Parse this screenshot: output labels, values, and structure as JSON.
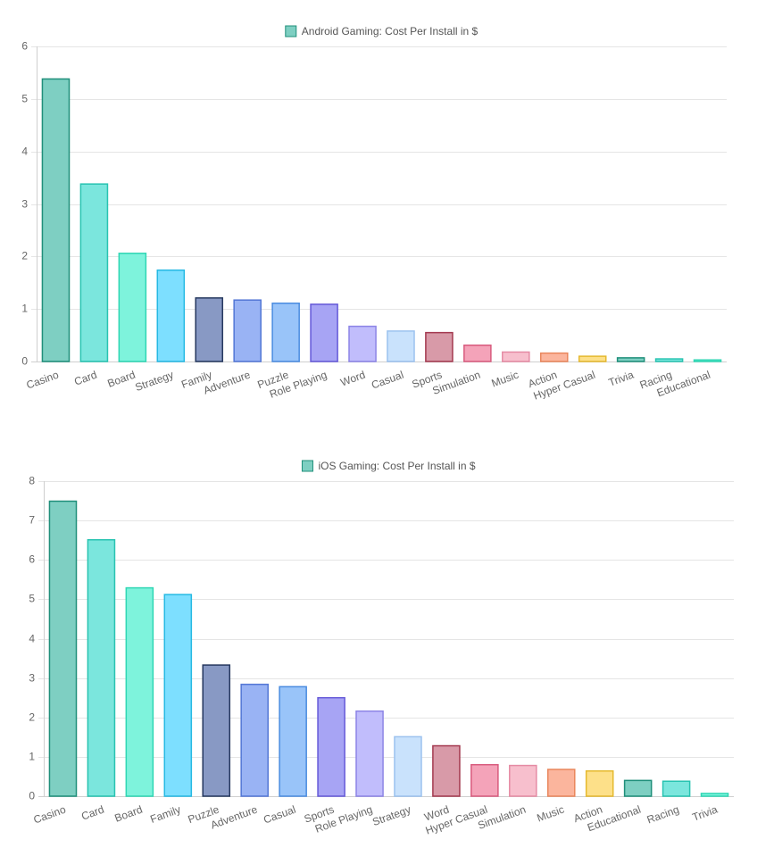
{
  "chart_data": [
    {
      "type": "bar",
      "legend": "Android Gaming: Cost Per Install in $",
      "legend_position": "top-center",
      "grid": true,
      "ylim": [
        0,
        6
      ],
      "yticks": [
        "0",
        "1",
        "2",
        "3",
        "4",
        "5",
        "6"
      ],
      "categories": [
        "Casino",
        "Card",
        "Board",
        "Strategy",
        "Family",
        "Adventure",
        "Puzzle",
        "Role Playing",
        "Word",
        "Casual",
        "Sports",
        "Simulation",
        "Music",
        "Action",
        "Hyper Casual",
        "Trivia",
        "Racing",
        "Educational"
      ],
      "values": [
        5.38,
        3.38,
        2.06,
        1.74,
        1.21,
        1.17,
        1.11,
        1.09,
        0.67,
        0.58,
        0.55,
        0.31,
        0.18,
        0.16,
        0.1,
        0.07,
        0.05,
        0.03
      ],
      "fills": [
        "#7ecfc2",
        "#7be6dd",
        "#7ef3dc",
        "#7ddfff",
        "#8899c4",
        "#99b3f4",
        "#99c4f9",
        "#a7a4f4",
        "#c1bdfc",
        "#c9e2fc",
        "#d89aa8",
        "#f4a3b9",
        "#f7bfcd",
        "#fbb59d",
        "#fde089",
        "#7ecfc2",
        "#7be6dd",
        "#7ef3dc"
      ],
      "strokes": [
        "#1f8f7a",
        "#28c3b1",
        "#2fd6b4",
        "#26b9e3",
        "#26385f",
        "#5377d6",
        "#4a8ce0",
        "#6559d8",
        "#8c84e6",
        "#9cc2ef",
        "#a3394f",
        "#d85b7e",
        "#e58ba4",
        "#e9865c",
        "#e5b92f",
        "#1f8f7a",
        "#28c3b1",
        "#2fd6b4"
      ],
      "legend_fill": "#7ecfc2",
      "legend_stroke": "#1f8f7a"
    },
    {
      "type": "bar",
      "legend": "iOS Gaming: Cost Per Install in $",
      "legend_position": "top-center",
      "grid": true,
      "ylim": [
        0,
        8
      ],
      "yticks": [
        "0",
        "1",
        "2",
        "3",
        "4",
        "5",
        "6",
        "7",
        "8"
      ],
      "categories": [
        "Casino",
        "Card",
        "Board",
        "Family",
        "Puzzle",
        "Adventure",
        "Casual",
        "Sports",
        "Role Playing",
        "Strategy",
        "Word",
        "Hyper Casual",
        "Simulation",
        "Music",
        "Action",
        "Educational",
        "Racing",
        "Trivia"
      ],
      "values": [
        7.49,
        6.51,
        5.29,
        5.12,
        3.33,
        2.84,
        2.78,
        2.5,
        2.16,
        1.51,
        1.28,
        0.8,
        0.78,
        0.68,
        0.64,
        0.4,
        0.38,
        0.07
      ],
      "fills": [
        "#7ecfc2",
        "#7be6dd",
        "#7ef3dc",
        "#7ddfff",
        "#8899c4",
        "#99b3f4",
        "#99c4f9",
        "#a7a4f4",
        "#c1bdfc",
        "#c9e2fc",
        "#d89aa8",
        "#f4a3b9",
        "#f7bfcd",
        "#fbb59d",
        "#fde089",
        "#7ecfc2",
        "#7be6dd",
        "#7ef3dc"
      ],
      "strokes": [
        "#1f8f7a",
        "#28c3b1",
        "#2fd6b4",
        "#26b9e3",
        "#26385f",
        "#5377d6",
        "#4a8ce0",
        "#6559d8",
        "#8c84e6",
        "#9cc2ef",
        "#a3394f",
        "#d85b7e",
        "#e58ba4",
        "#e9865c",
        "#e5b92f",
        "#1f8f7a",
        "#28c3b1",
        "#2fd6b4"
      ],
      "legend_fill": "#7ecfc2",
      "legend_stroke": "#1f8f7a"
    }
  ]
}
